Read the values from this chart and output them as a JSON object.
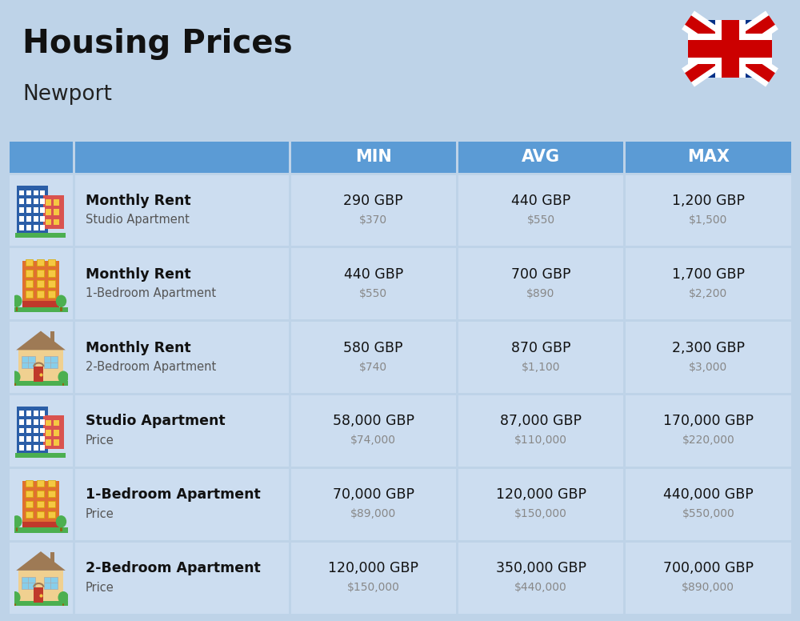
{
  "title": "Housing Prices",
  "subtitle": "Newport",
  "background_color": "#bed3e8",
  "header_color": "#5b9bd5",
  "header_text_color": "#ffffff",
  "row_bg_color": "#ccddf0",
  "divider_color": "#ffffff",
  "col_headers": [
    "MIN",
    "AVG",
    "MAX"
  ],
  "rows": [
    {
      "bold_label": "Monthly Rent",
      "sub_label": "Studio Apartment",
      "min_gbp": "290 GBP",
      "min_usd": "$370",
      "avg_gbp": "440 GBP",
      "avg_usd": "$550",
      "max_gbp": "1,200 GBP",
      "max_usd": "$1,500",
      "icon_type": "studio_blue"
    },
    {
      "bold_label": "Monthly Rent",
      "sub_label": "1-Bedroom Apartment",
      "min_gbp": "440 GBP",
      "min_usd": "$550",
      "avg_gbp": "700 GBP",
      "avg_usd": "$890",
      "max_gbp": "1,700 GBP",
      "max_usd": "$2,200",
      "icon_type": "one_bed_orange"
    },
    {
      "bold_label": "Monthly Rent",
      "sub_label": "2-Bedroom Apartment",
      "min_gbp": "580 GBP",
      "min_usd": "$740",
      "avg_gbp": "870 GBP",
      "avg_usd": "$1,100",
      "max_gbp": "2,300 GBP",
      "max_usd": "$3,000",
      "icon_type": "two_bed_tan"
    },
    {
      "bold_label": "Studio Apartment",
      "sub_label": "Price",
      "min_gbp": "58,000 GBP",
      "min_usd": "$74,000",
      "avg_gbp": "87,000 GBP",
      "avg_usd": "$110,000",
      "max_gbp": "170,000 GBP",
      "max_usd": "$220,000",
      "icon_type": "studio_blue"
    },
    {
      "bold_label": "1-Bedroom Apartment",
      "sub_label": "Price",
      "min_gbp": "70,000 GBP",
      "min_usd": "$89,000",
      "avg_gbp": "120,000 GBP",
      "avg_usd": "$150,000",
      "max_gbp": "440,000 GBP",
      "max_usd": "$550,000",
      "icon_type": "one_bed_orange"
    },
    {
      "bold_label": "2-Bedroom Apartment",
      "sub_label": "Price",
      "min_gbp": "120,000 GBP",
      "min_usd": "$150,000",
      "avg_gbp": "350,000 GBP",
      "avg_usd": "$440,000",
      "max_gbp": "700,000 GBP",
      "max_usd": "$890,000",
      "icon_type": "two_bed_tan"
    }
  ],
  "fig_width": 10.0,
  "fig_height": 7.76,
  "dpi": 100
}
